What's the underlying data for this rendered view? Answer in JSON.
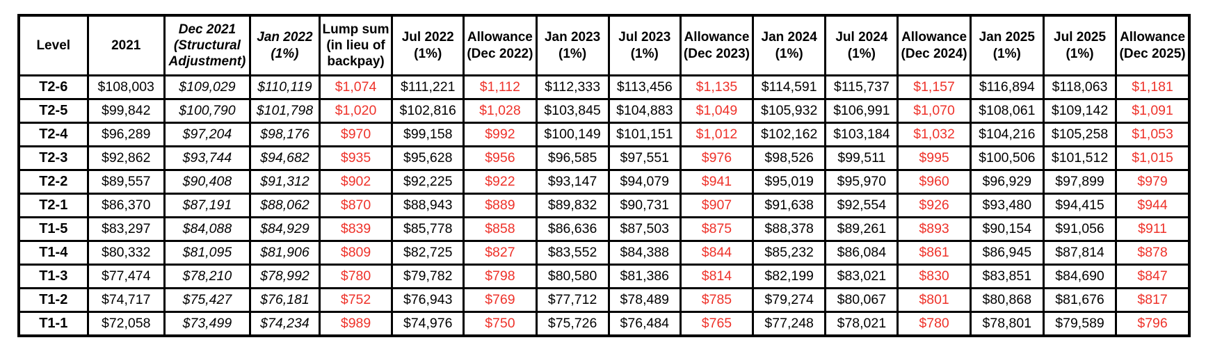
{
  "colors": {
    "value_red": "#ee322a",
    "text_black": "#000000",
    "border_black": "#000000",
    "background": "#ffffff"
  },
  "chart_data": {
    "type": "table",
    "columns": [
      {
        "id": "level",
        "header": [
          "Level"
        ],
        "italic": false,
        "values_italic": false,
        "values_red": false
      },
      {
        "id": "y2021",
        "header": [
          "2021"
        ],
        "italic": false,
        "values_italic": false,
        "values_red": false
      },
      {
        "id": "dec2021",
        "header": [
          "Dec 2021",
          "(Structural",
          "Adjustment)"
        ],
        "italic": true,
        "values_italic": true,
        "values_red": false
      },
      {
        "id": "jan2022",
        "header": [
          "Jan 2022",
          "(1%)"
        ],
        "italic": true,
        "values_italic": true,
        "values_red": false
      },
      {
        "id": "lumpsum",
        "header": [
          "Lump sum",
          "(in lieu of",
          "backpay)"
        ],
        "italic": false,
        "values_italic": false,
        "values_red": true
      },
      {
        "id": "jul2022",
        "header": [
          "Jul 2022",
          "(1%)"
        ],
        "italic": false,
        "values_italic": false,
        "values_red": false
      },
      {
        "id": "allow-dec2022",
        "header": [
          "Allowance",
          "(Dec 2022)"
        ],
        "italic": false,
        "values_italic": false,
        "values_red": true
      },
      {
        "id": "jan2023",
        "header": [
          "Jan 2023",
          "(1%)"
        ],
        "italic": false,
        "values_italic": false,
        "values_red": false
      },
      {
        "id": "jul2023",
        "header": [
          "Jul 2023",
          "(1%)"
        ],
        "italic": false,
        "values_italic": false,
        "values_red": false
      },
      {
        "id": "allow-dec2023",
        "header": [
          "Allowance",
          "(Dec 2023)"
        ],
        "italic": false,
        "values_italic": false,
        "values_red": true
      },
      {
        "id": "jan2024",
        "header": [
          "Jan 2024",
          "(1%)"
        ],
        "italic": false,
        "values_italic": false,
        "values_red": false
      },
      {
        "id": "jul2024",
        "header": [
          "Jul 2024",
          "(1%)"
        ],
        "italic": false,
        "values_italic": false,
        "values_red": false
      },
      {
        "id": "allow-dec2024",
        "header": [
          "Allowance",
          "(Dec 2024)"
        ],
        "italic": false,
        "values_italic": false,
        "values_red": true
      },
      {
        "id": "jan2025",
        "header": [
          "Jan 2025",
          "(1%)"
        ],
        "italic": false,
        "values_italic": false,
        "values_red": false
      },
      {
        "id": "jul2025",
        "header": [
          "Jul 2025",
          "(1%)"
        ],
        "italic": false,
        "values_italic": false,
        "values_red": false
      },
      {
        "id": "allow-dec2025",
        "header": [
          "Allowance",
          "(Dec 2025)"
        ],
        "italic": false,
        "values_italic": false,
        "values_red": true
      }
    ],
    "rows": [
      {
        "level": "T2-6",
        "values": [
          "$108,003",
          "$109,029",
          "$110,119",
          "$1,074",
          "$111,221",
          "$1,112",
          "$112,333",
          "$113,456",
          "$1,135",
          "$114,591",
          "$115,737",
          "$1,157",
          "$116,894",
          "$118,063",
          "$1,181"
        ]
      },
      {
        "level": "T2-5",
        "values": [
          "$99,842",
          "$100,790",
          "$101,798",
          "$1,020",
          "$102,816",
          "$1,028",
          "$103,845",
          "$104,883",
          "$1,049",
          "$105,932",
          "$106,991",
          "$1,070",
          "$108,061",
          "$109,142",
          "$1,091"
        ]
      },
      {
        "level": "T2-4",
        "values": [
          "$96,289",
          "$97,204",
          "$98,176",
          "$970",
          "$99,158",
          "$992",
          "$100,149",
          "$101,151",
          "$1,012",
          "$102,162",
          "$103,184",
          "$1,032",
          "$104,216",
          "$105,258",
          "$1,053"
        ]
      },
      {
        "level": "T2-3",
        "values": [
          "$92,862",
          "$93,744",
          "$94,682",
          "$935",
          "$95,628",
          "$956",
          "$96,585",
          "$97,551",
          "$976",
          "$98,526",
          "$99,511",
          "$995",
          "$100,506",
          "$101,512",
          "$1,015"
        ]
      },
      {
        "level": "T2-2",
        "values": [
          "$89,557",
          "$90,408",
          "$91,312",
          "$902",
          "$92,225",
          "$922",
          "$93,147",
          "$94,079",
          "$941",
          "$95,019",
          "$95,970",
          "$960",
          "$96,929",
          "$97,899",
          "$979"
        ]
      },
      {
        "level": "T2-1",
        "values": [
          "$86,370",
          "$87,191",
          "$88,062",
          "$870",
          "$88,943",
          "$889",
          "$89,832",
          "$90,731",
          "$907",
          "$91,638",
          "$92,554",
          "$926",
          "$93,480",
          "$94,415",
          "$944"
        ]
      },
      {
        "level": "T1-5",
        "values": [
          "$83,297",
          "$84,088",
          "$84,929",
          "$839",
          "$85,778",
          "$858",
          "$86,636",
          "$87,503",
          "$875",
          "$88,378",
          "$89,261",
          "$893",
          "$90,154",
          "$91,056",
          "$911"
        ]
      },
      {
        "level": "T1-4",
        "values": [
          "$80,332",
          "$81,095",
          "$81,906",
          "$809",
          "$82,725",
          "$827",
          "$83,552",
          "$84,388",
          "$844",
          "$85,232",
          "$86,084",
          "$861",
          "$86,945",
          "$87,814",
          "$878"
        ]
      },
      {
        "level": "T1-3",
        "values": [
          "$77,474",
          "$78,210",
          "$78,992",
          "$780",
          "$79,782",
          "$798",
          "$80,580",
          "$81,386",
          "$814",
          "$82,199",
          "$83,021",
          "$830",
          "$83,851",
          "$84,690",
          "$847"
        ]
      },
      {
        "level": "T1-2",
        "values": [
          "$74,717",
          "$75,427",
          "$76,181",
          "$752",
          "$76,943",
          "$769",
          "$77,712",
          "$78,489",
          "$785",
          "$79,274",
          "$80,067",
          "$801",
          "$80,868",
          "$81,676",
          "$817"
        ]
      },
      {
        "level": "T1-1",
        "values": [
          "$72,058",
          "$73,499",
          "$74,234",
          "$989",
          "$74,976",
          "$750",
          "$75,726",
          "$76,484",
          "$765",
          "$77,248",
          "$78,021",
          "$780",
          "$78,801",
          "$79,589",
          "$796"
        ]
      }
    ]
  }
}
